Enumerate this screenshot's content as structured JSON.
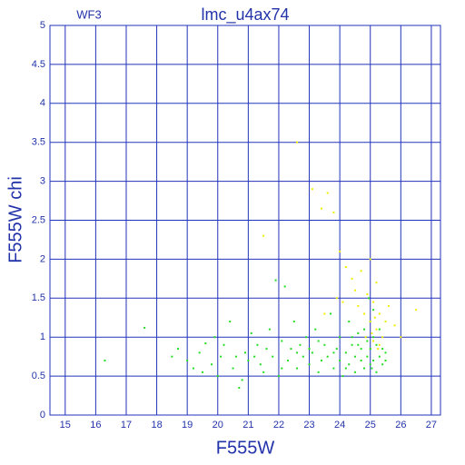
{
  "chart_data": {
    "type": "scatter",
    "title": "lmc_u4ax74",
    "label": "WF3",
    "x_label": "F555W",
    "y_label": "F555W chi",
    "xlim": [
      14.5,
      27.3
    ],
    "ylim": [
      0,
      5
    ],
    "xticks": [
      15,
      16,
      17,
      18,
      19,
      20,
      21,
      22,
      23,
      24,
      25,
      26,
      27
    ],
    "yticks": [
      0,
      0.5,
      1,
      1.5,
      2,
      2.5,
      3,
      3.5,
      4,
      4.5,
      5
    ],
    "grid": true,
    "series": [
      {
        "color": "#22dd22",
        "x": [
          16.3,
          17.6,
          18.5,
          18.7,
          19.0,
          19.2,
          19.4,
          19.5,
          19.6,
          19.8,
          19.9,
          20.0,
          20.1,
          20.2,
          20.4,
          20.5,
          20.6,
          20.7,
          20.8,
          20.9,
          21.0,
          21.1,
          21.3,
          21.4,
          21.5,
          21.6,
          21.7,
          21.8,
          21.9,
          22.0,
          22.1,
          22.2,
          22.3,
          22.4,
          22.5,
          22.6,
          22.7,
          22.8,
          22.9,
          23.0,
          23.1,
          23.2,
          23.3,
          23.4,
          23.5,
          23.6,
          23.7,
          23.8,
          23.9,
          24.0,
          24.0,
          24.1,
          24.2,
          24.3,
          24.3,
          24.4,
          24.5,
          24.5,
          24.6,
          24.7,
          24.7,
          24.8,
          24.8,
          24.9,
          24.9,
          25.0,
          25.0,
          25.0,
          25.1,
          25.1,
          25.2,
          25.2,
          25.3,
          25.3,
          25.4,
          25.4,
          25.5,
          25.5,
          23.3,
          23.8,
          22.6,
          24.2,
          24.6,
          25.1,
          24.95,
          25.05,
          23.0,
          22.1,
          21.2,
          24.4
        ],
        "y": [
          0.7,
          1.12,
          0.75,
          0.85,
          0.7,
          0.6,
          0.8,
          0.55,
          0.92,
          0.65,
          1.0,
          0.5,
          0.75,
          0.9,
          1.2,
          0.6,
          0.75,
          0.35,
          0.45,
          0.8,
          0.7,
          1.05,
          0.9,
          0.65,
          0.55,
          0.85,
          1.1,
          0.75,
          1.73,
          0.5,
          0.95,
          1.65,
          0.7,
          0.85,
          1.2,
          0.6,
          0.9,
          0.75,
          1.0,
          0.65,
          0.8,
          1.1,
          0.55,
          0.7,
          0.9,
          0.75,
          1.3,
          0.6,
          0.85,
          0.7,
          1.0,
          0.5,
          0.8,
          0.65,
          1.2,
          0.9,
          0.75,
          0.55,
          1.05,
          0.7,
          0.85,
          0.6,
          1.1,
          0.75,
          0.95,
          0.65,
          0.85,
          1.2,
          0.7,
          1.0,
          0.55,
          0.9,
          0.75,
          1.1,
          0.65,
          0.85,
          0.8,
          0.7,
          0.95,
          0.8,
          0.8,
          0.6,
          0.9,
          1.35,
          1.5,
          0.6,
          0.85,
          0.6,
          0.75,
          1.0
        ]
      },
      {
        "color": "#eeee00",
        "x": [
          21.5,
          22.6,
          23.1,
          23.4,
          23.6,
          23.8,
          24.0,
          24.2,
          24.4,
          24.5,
          24.6,
          24.7,
          24.8,
          24.9,
          25.0,
          25.0,
          25.05,
          25.1,
          25.1,
          25.15,
          25.2,
          25.2,
          25.3,
          25.3,
          25.4,
          25.5,
          25.6,
          25.8,
          26.0,
          26.5,
          23.5,
          24.1,
          23.9,
          24.85,
          25.25
        ],
        "y": [
          2.3,
          3.5,
          2.9,
          2.65,
          2.85,
          2.6,
          2.1,
          1.9,
          1.75,
          1.6,
          1.4,
          1.85,
          1.3,
          1.55,
          1.2,
          2.0,
          1.05,
          1.45,
          0.95,
          1.25,
          1.1,
          1.7,
          1.3,
          0.9,
          1.0,
          1.2,
          1.4,
          1.15,
          1.0,
          1.35,
          1.3,
          1.45,
          1.5,
          1.0,
          0.85
        ]
      }
    ]
  }
}
